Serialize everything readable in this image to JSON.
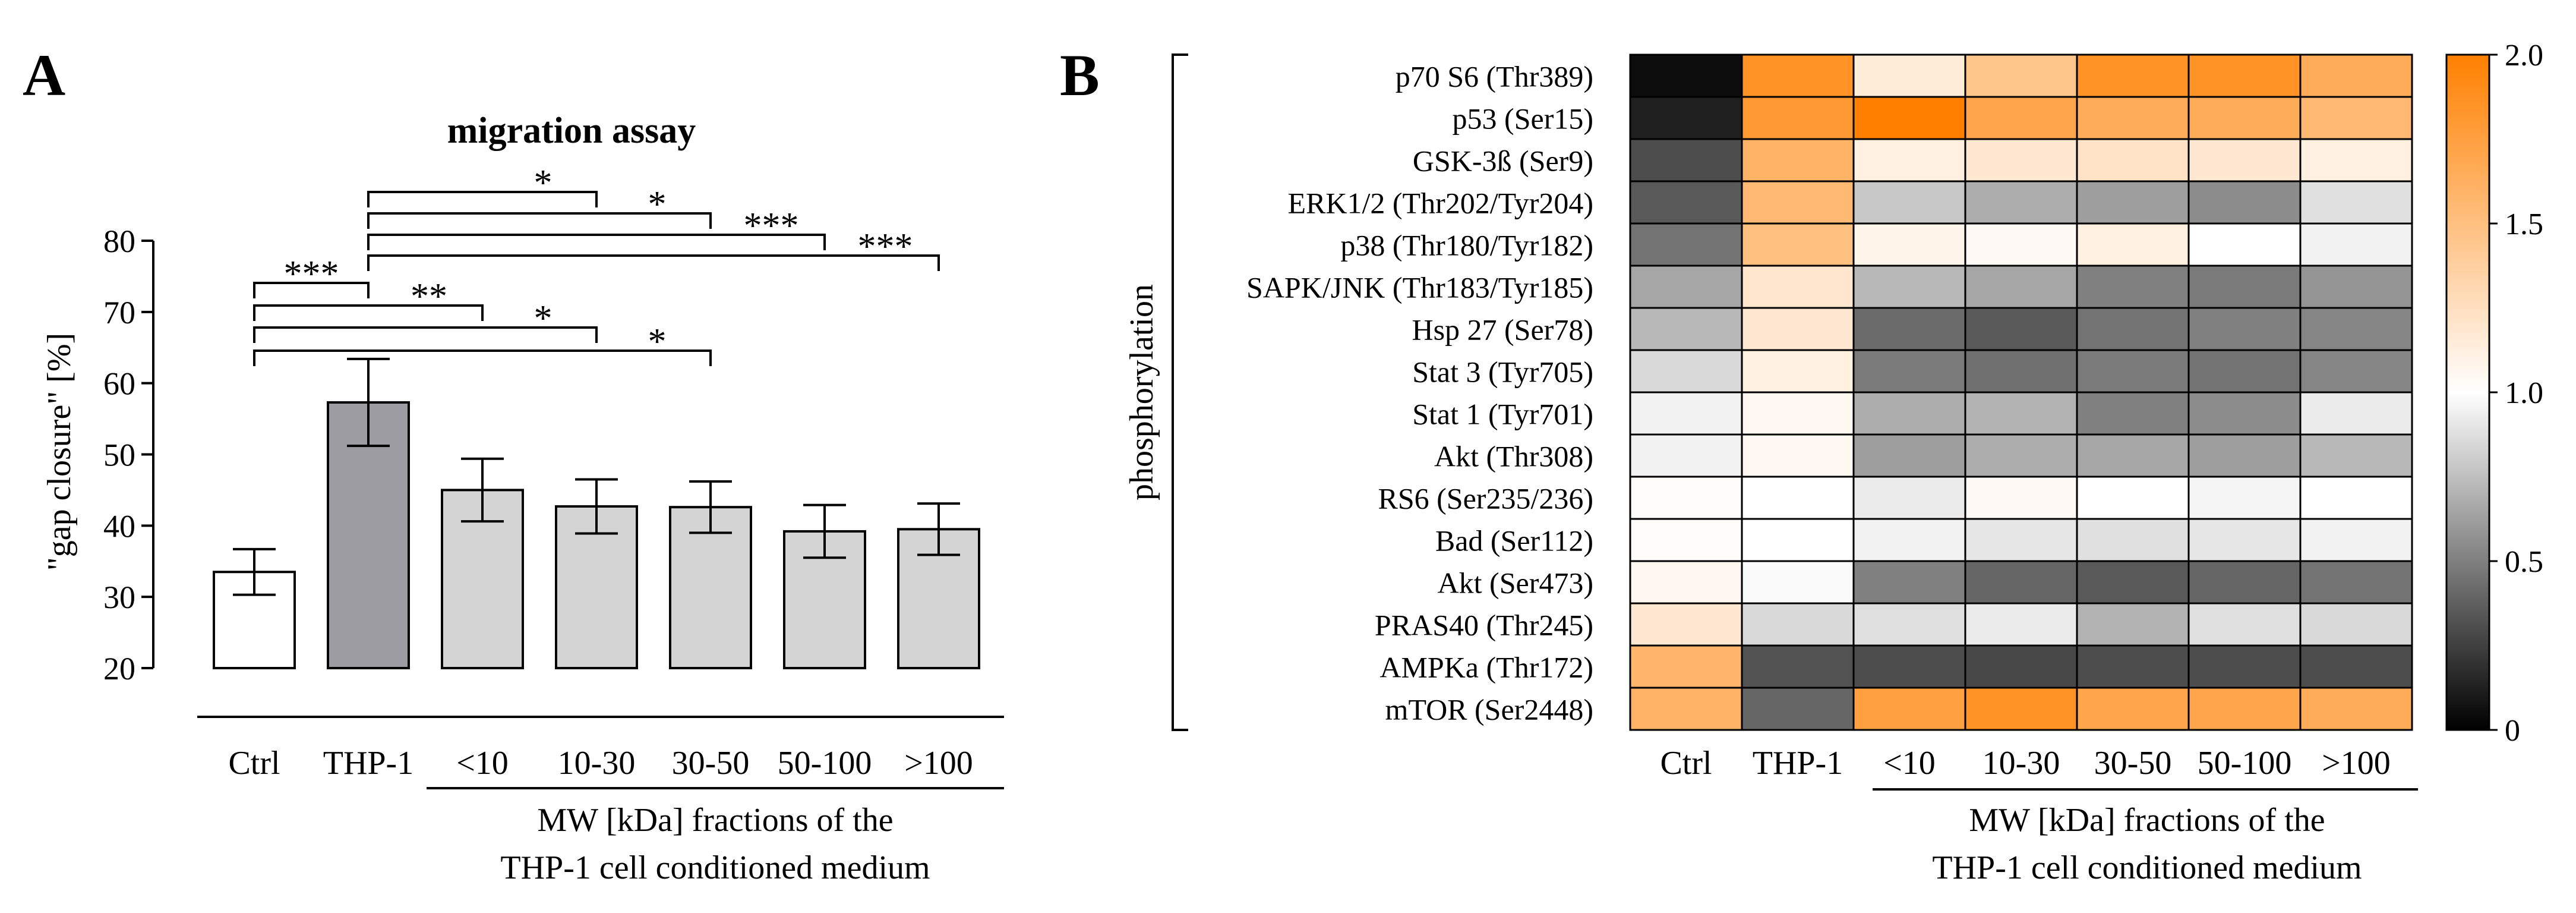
{
  "chart_data": [
    {
      "type": "bar",
      "panel_label": "A",
      "title": "migration assay",
      "ylabel": "\"gap closure\" [%]",
      "ylim": [
        20,
        80
      ],
      "yticks": [
        20,
        30,
        40,
        50,
        60,
        70,
        80
      ],
      "categories": [
        "Ctrl",
        "THP-1",
        "<10",
        "10-30",
        "30-50",
        "50-100",
        ">100"
      ],
      "values": [
        33.5,
        57.3,
        45.0,
        42.7,
        42.6,
        39.2,
        39.5
      ],
      "errors": [
        3.2,
        6.1,
        4.4,
        3.8,
        3.6,
        3.7,
        3.6
      ],
      "bar_colors": [
        "#ffffff",
        "#9d9ca2",
        "#d4d4d4",
        "#d4d4d4",
        "#d4d4d4",
        "#d4d4d4",
        "#d4d4d4"
      ],
      "group_label_line1": "MW [kDa] fractions of the",
      "group_label_line2": "THP-1 cell conditioned medium",
      "significance": [
        {
          "from": "THP-1",
          "to": "10-30",
          "label": "*"
        },
        {
          "from": "THP-1",
          "to": "30-50",
          "label": "*"
        },
        {
          "from": "THP-1",
          "to": "50-100",
          "label": "***"
        },
        {
          "from": "THP-1",
          "to": ">100",
          "label": "***"
        },
        {
          "from": "Ctrl",
          "to": "THP-1",
          "label": "***"
        },
        {
          "from": "Ctrl",
          "to": "<10",
          "label": "**"
        },
        {
          "from": "Ctrl",
          "to": "10-30",
          "label": "*"
        },
        {
          "from": "Ctrl",
          "to": "30-50",
          "label": "*"
        }
      ]
    },
    {
      "type": "heatmap",
      "panel_label": "B",
      "side_label": "phosphorylation",
      "columns": [
        "Ctrl",
        "THP-1",
        "<10",
        "10-30",
        "30-50",
        "50-100",
        ">100"
      ],
      "rows": [
        "p70 S6 (Thr389)",
        "p53 (Ser15)",
        "GSK-3ß (Ser9)",
        "ERK1/2 (Thr202/Tyr204)",
        "p38 (Thr180/Tyr182)",
        "SAPK/JNK (Thr183/Tyr185)",
        "Hsp 27 (Ser78)",
        "Stat 3 (Tyr705)",
        "Stat 1 (Tyr701)",
        "Akt (Thr308)",
        "RS6 (Ser235/236)",
        "Bad (Ser112)",
        "Akt (Ser473)",
        "PRAS40 (Thr245)",
        "AMPKa (Thr172)",
        "mTOR (Ser2448)"
      ],
      "values": [
        [
          0.05,
          1.85,
          1.15,
          1.45,
          1.85,
          1.85,
          1.65
        ],
        [
          0.12,
          1.8,
          2.0,
          1.7,
          1.65,
          1.65,
          1.55
        ],
        [
          0.3,
          1.6,
          1.12,
          1.18,
          1.22,
          1.18,
          1.12
        ],
        [
          0.35,
          1.55,
          0.78,
          0.68,
          0.62,
          0.55,
          0.88
        ],
        [
          0.45,
          1.5,
          1.08,
          1.04,
          1.12,
          1.0,
          0.95
        ],
        [
          0.65,
          1.2,
          0.72,
          0.65,
          0.5,
          0.48,
          0.58
        ],
        [
          0.72,
          1.18,
          0.42,
          0.35,
          0.45,
          0.5,
          0.52
        ],
        [
          0.85,
          1.12,
          0.48,
          0.44,
          0.48,
          0.45,
          0.52
        ],
        [
          0.95,
          1.05,
          0.68,
          0.7,
          0.5,
          0.55,
          0.92
        ],
        [
          0.95,
          1.05,
          0.62,
          0.68,
          0.65,
          0.62,
          0.72
        ],
        [
          1.02,
          1.0,
          0.92,
          1.04,
          1.0,
          0.96,
          1.0
        ],
        [
          1.02,
          1.0,
          0.95,
          0.9,
          0.88,
          0.9,
          0.95
        ],
        [
          1.06,
          0.98,
          0.5,
          0.4,
          0.35,
          0.4,
          0.45
        ],
        [
          1.18,
          0.85,
          0.88,
          0.92,
          0.7,
          0.88,
          0.85
        ],
        [
          1.58,
          0.32,
          0.3,
          0.28,
          0.3,
          0.3,
          0.3
        ],
        [
          1.6,
          0.4,
          1.75,
          1.85,
          1.7,
          1.7,
          1.65
        ]
      ],
      "color_scale": {
        "min": 0,
        "mid": 1.0,
        "max": 2.0,
        "low_color": "#000000",
        "mid_color": "#ffffff",
        "high_color": "#ff8000"
      },
      "colorbar_ticks": [
        "0",
        "0.5",
        "1.0",
        "1.5",
        "2.0"
      ],
      "colorbar_tick_values": [
        0,
        0.5,
        1.0,
        1.5,
        2.0
      ],
      "group_label_line1": "MW [kDa] fractions of the",
      "group_label_line2": "THP-1 cell conditioned medium"
    }
  ]
}
